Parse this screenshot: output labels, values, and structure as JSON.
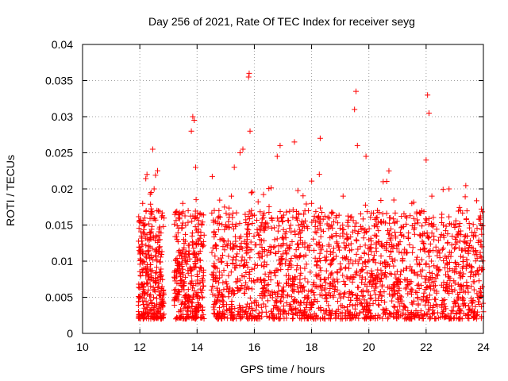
{
  "chart_data": {
    "type": "scatter",
    "title": "Day 256 of 2021, Rate Of TEC Index for receiver seyg",
    "xlabel": "GPS time / hours",
    "ylabel": "ROTI / TECUs",
    "xlim": [
      10,
      24
    ],
    "ylim": [
      0,
      0.04
    ],
    "x_ticks": [
      10,
      12,
      14,
      16,
      18,
      20,
      22,
      24
    ],
    "x_tick_labels": [
      "10",
      "12",
      "14",
      "16",
      "18",
      "20",
      "22",
      "24"
    ],
    "y_ticks": [
      0,
      0.005,
      0.01,
      0.015,
      0.02,
      0.025,
      0.03,
      0.035,
      0.04
    ],
    "y_tick_labels": [
      "0",
      "0.005",
      "0.01",
      "0.015",
      "0.02",
      "0.025",
      "0.03",
      "0.035",
      "0.04"
    ],
    "grid": true,
    "marker": "+",
    "marker_color": "#ff0000",
    "series": [
      {
        "name": "ROTI",
        "description_of_density": "dense points from about 12.0 h to 24.0 h, gaps near 12.9-13.2 h and 14.3-14.5 h",
        "points": [
          [
            12.0,
            0.005
          ],
          [
            12.05,
            0.012
          ],
          [
            12.1,
            0.018
          ],
          [
            12.12,
            0.004
          ],
          [
            12.2,
            0.009
          ],
          [
            12.25,
            0.022
          ],
          [
            12.3,
            0.006
          ],
          [
            12.35,
            0.014
          ],
          [
            12.4,
            0.0105
          ],
          [
            12.45,
            0.0255
          ],
          [
            12.5,
            0.02
          ],
          [
            12.55,
            0.007
          ],
          [
            12.6,
            0.017
          ],
          [
            12.65,
            0.003
          ],
          [
            12.7,
            0.012
          ],
          [
            12.75,
            0.008
          ],
          [
            13.2,
            0.006
          ],
          [
            13.3,
            0.013
          ],
          [
            13.4,
            0.009
          ],
          [
            13.5,
            0.018
          ],
          [
            13.6,
            0.005
          ],
          [
            13.7,
            0.011
          ],
          [
            13.8,
            0.028
          ],
          [
            13.85,
            0.03
          ],
          [
            13.9,
            0.0295
          ],
          [
            13.95,
            0.023
          ],
          [
            14.0,
            0.016
          ],
          [
            14.1,
            0.007
          ],
          [
            14.2,
            0.012
          ],
          [
            14.5,
            0.006
          ],
          [
            14.6,
            0.017
          ],
          [
            14.7,
            0.009
          ],
          [
            14.8,
            0.013
          ],
          [
            14.9,
            0.004
          ],
          [
            15.0,
            0.015
          ],
          [
            15.1,
            0.008
          ],
          [
            15.2,
            0.019
          ],
          [
            15.3,
            0.023
          ],
          [
            15.4,
            0.011
          ],
          [
            15.5,
            0.025
          ],
          [
            15.6,
            0.0255
          ],
          [
            15.7,
            0.007
          ],
          [
            15.8,
            0.0355
          ],
          [
            15.82,
            0.036
          ],
          [
            15.85,
            0.028
          ],
          [
            15.9,
            0.017
          ],
          [
            16.0,
            0.009
          ],
          [
            16.2,
            0.013
          ],
          [
            16.4,
            0.006
          ],
          [
            16.6,
            0.016
          ],
          [
            16.8,
            0.0245
          ],
          [
            16.9,
            0.026
          ],
          [
            17.0,
            0.011
          ],
          [
            17.2,
            0.008
          ],
          [
            17.4,
            0.0265
          ],
          [
            17.6,
            0.014
          ],
          [
            17.8,
            0.005
          ],
          [
            18.0,
            0.018
          ],
          [
            18.2,
            0.01
          ],
          [
            18.3,
            0.027
          ],
          [
            18.5,
            0.007
          ],
          [
            18.7,
            0.015
          ],
          [
            18.9,
            0.006
          ],
          [
            19.1,
            0.019
          ],
          [
            19.3,
            0.009
          ],
          [
            19.5,
            0.031
          ],
          [
            19.55,
            0.0335
          ],
          [
            19.6,
            0.026
          ],
          [
            19.7,
            0.012
          ],
          [
            19.9,
            0.0245
          ],
          [
            20.1,
            0.008
          ],
          [
            20.3,
            0.017
          ],
          [
            20.5,
            0.021
          ],
          [
            20.7,
            0.0225
          ],
          [
            20.9,
            0.006
          ],
          [
            21.1,
            0.014
          ],
          [
            21.3,
            0.009
          ],
          [
            21.5,
            0.018
          ],
          [
            21.7,
            0.005
          ],
          [
            21.9,
            0.0125
          ],
          [
            22.0,
            0.024
          ],
          [
            22.05,
            0.033
          ],
          [
            22.1,
            0.0305
          ],
          [
            22.2,
            0.019
          ],
          [
            22.4,
            0.008
          ],
          [
            22.6,
            0.015
          ],
          [
            22.8,
            0.02
          ],
          [
            23.0,
            0.006
          ],
          [
            23.2,
            0.017
          ],
          [
            23.4,
            0.009
          ],
          [
            23.6,
            0.014
          ],
          [
            23.8,
            0.005
          ],
          [
            23.9,
            0.016
          ],
          [
            24.0,
            0.003
          ]
        ]
      }
    ]
  }
}
